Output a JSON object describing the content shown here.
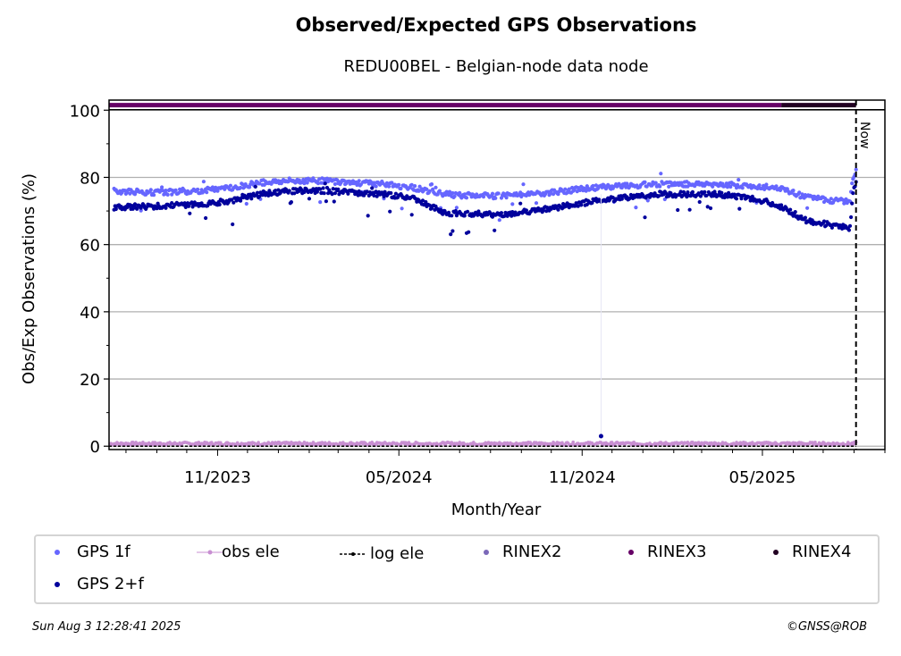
{
  "chart_data": {
    "type": "scatter",
    "title": "Observed/Expected GPS Observations",
    "subtitle": "REDU00BEL - Belgian-node data node",
    "xlabel": "Month/Year",
    "ylabel": "Obs/Exp Observations (%)",
    "x_ticks": [
      "11/2023",
      "05/2024",
      "11/2024",
      "05/2025"
    ],
    "y_ticks": [
      0,
      20,
      40,
      60,
      80,
      100
    ],
    "ylim": [
      -1,
      103
    ],
    "xlim": [
      "2023-07-15",
      "2025-09-01"
    ],
    "grid": "horizontal",
    "now_label": "Now",
    "now_date": "2025-08-03",
    "series": [
      {
        "name": "GPS 1f",
        "color": "#6666ff",
        "points": [
          [
            "2023-07-20",
            76
          ],
          [
            "2023-09-01",
            75.5
          ],
          [
            "2023-10-15",
            76
          ],
          [
            "2023-11-15",
            77
          ],
          [
            "2023-12-15",
            78.5
          ],
          [
            "2024-01-15",
            79
          ],
          [
            "2024-02-15",
            79
          ],
          [
            "2024-03-15",
            78.5
          ],
          [
            "2024-04-15",
            78
          ],
          [
            "2024-05-15",
            77
          ],
          [
            "2024-06-15",
            75
          ],
          [
            "2024-07-15",
            74.5
          ],
          [
            "2024-08-15",
            74.5
          ],
          [
            "2024-09-15",
            75
          ],
          [
            "2024-10-15",
            76
          ],
          [
            "2024-11-15",
            77
          ],
          [
            "2024-12-15",
            77.5
          ],
          [
            "2025-01-15",
            78
          ],
          [
            "2025-02-15",
            78
          ],
          [
            "2025-03-15",
            78
          ],
          [
            "2025-04-15",
            77.5
          ],
          [
            "2025-05-15",
            77
          ],
          [
            "2025-06-15",
            74
          ],
          [
            "2025-07-15",
            73
          ],
          [
            "2025-07-28",
            73
          ],
          [
            "2025-07-31",
            80
          ],
          [
            "2025-08-03",
            82
          ]
        ]
      },
      {
        "name": "GPS 2+f",
        "color": "#00009c",
        "points": [
          [
            "2023-07-20",
            71
          ],
          [
            "2023-09-01",
            71.5
          ],
          [
            "2023-10-15",
            72
          ],
          [
            "2023-11-15",
            73
          ],
          [
            "2023-12-15",
            75
          ],
          [
            "2024-01-15",
            76
          ],
          [
            "2024-02-15",
            76
          ],
          [
            "2024-03-15",
            75.5
          ],
          [
            "2024-04-15",
            75
          ],
          [
            "2024-05-15",
            74
          ],
          [
            "2024-06-15",
            69.5
          ],
          [
            "2024-07-15",
            69
          ],
          [
            "2024-08-15",
            69
          ],
          [
            "2024-09-15",
            70
          ],
          [
            "2024-10-15",
            71.5
          ],
          [
            "2024-11-15",
            73
          ],
          [
            "2024-12-15",
            74
          ],
          [
            "2025-01-15",
            75
          ],
          [
            "2025-02-15",
            75
          ],
          [
            "2025-03-15",
            75
          ],
          [
            "2025-04-15",
            74
          ],
          [
            "2025-05-15",
            72
          ],
          [
            "2025-06-15",
            67
          ],
          [
            "2025-07-15",
            65.5
          ],
          [
            "2025-07-28",
            65
          ],
          [
            "2025-07-31",
            76
          ],
          [
            "2025-08-03",
            79
          ]
        ]
      },
      {
        "name": "obs ele",
        "color": "#c88fd2",
        "value": 0.3
      },
      {
        "name": "log ele",
        "color": "#000000",
        "value": 0
      },
      {
        "name": "RINEX2",
        "color": "#7b68b8"
      },
      {
        "name": "RINEX3",
        "color": "#660066",
        "value": 101.5,
        "range": [
          "2023-07-15",
          "2025-05-20"
        ]
      },
      {
        "name": "RINEX4",
        "color": "#220022",
        "value": 101.5,
        "range": [
          "2025-05-20",
          "2025-08-03"
        ]
      }
    ],
    "outliers": [
      {
        "series": "GPS 2+f",
        "x": "2024-11-20",
        "y": 3
      }
    ]
  },
  "legend": {
    "gps1f": "GPS 1f",
    "obs_ele": "obs ele",
    "log_ele": "log ele",
    "rinex2": "RINEX2",
    "rinex3": "RINEX3",
    "rinex4": "RINEX4",
    "gps2f": "GPS 2+f"
  },
  "footer": {
    "date": "Sun Aug  3 12:28:41 2025",
    "copyright": "©GNSS@ROB"
  }
}
